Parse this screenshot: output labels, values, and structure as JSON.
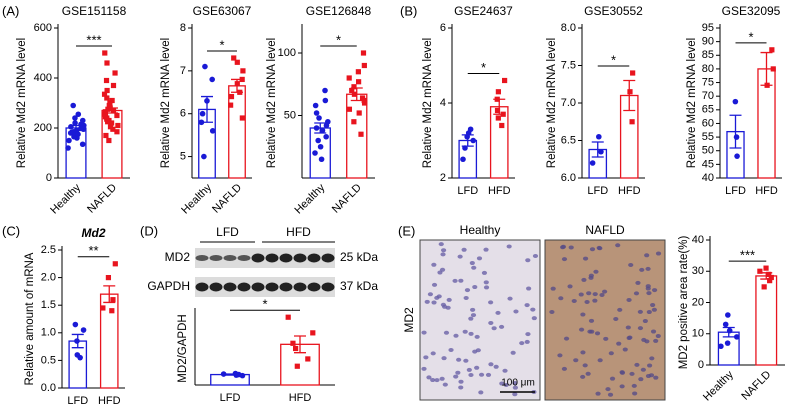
{
  "chart_data": [
    {
      "type": "bar",
      "panel": "(A)",
      "title": "GSE151158",
      "ylabel": "Relative Md2 mRNA level",
      "categories": [
        "Healthy",
        "NAFLD"
      ],
      "values": [
        200,
        270
      ],
      "errors": [
        10,
        10
      ],
      "points": [
        [
          120,
          135,
          150,
          160,
          165,
          170,
          175,
          180,
          185,
          190,
          195,
          200,
          205,
          210,
          215,
          220,
          230,
          240,
          255,
          290
        ],
        [
          150,
          170,
          185,
          195,
          205,
          210,
          220,
          225,
          230,
          235,
          240,
          245,
          250,
          255,
          260,
          265,
          270,
          275,
          280,
          290,
          300,
          310,
          320,
          335,
          350,
          370,
          390,
          420,
          460,
          500
        ]
      ],
      "colors": [
        "#1a1ad6",
        "#e8141e"
      ],
      "markers": [
        "circle",
        "square"
      ],
      "ylim": [
        0,
        600
      ],
      "yticks": [
        0,
        200,
        400,
        600
      ],
      "significance": "***"
    },
    {
      "type": "bar",
      "title": "GSE63067",
      "ylabel": "Relative Md2 mRNA level",
      "categories": [
        "Healthy",
        "NAFLD"
      ],
      "values": [
        6.1,
        6.65
      ],
      "errors": [
        0.3,
        0.15
      ],
      "points": [
        [
          5.0,
          5.6,
          5.8,
          6.0,
          6.3,
          6.8,
          7.1
        ],
        [
          5.9,
          6.2,
          6.4,
          6.5,
          6.7,
          6.8,
          7.0,
          7.2,
          7.3
        ]
      ],
      "colors": [
        "#1a1ad6",
        "#e8141e"
      ],
      "markers": [
        "circle",
        "square"
      ],
      "ylim": [
        4.5,
        8
      ],
      "yticks": [
        5,
        6,
        7,
        8
      ],
      "significance": "*"
    },
    {
      "type": "bar",
      "title": "GSE126848",
      "ylabel": "Relative Md2 mRNA level",
      "categories": [
        "Healthy",
        "NAFLD"
      ],
      "values": [
        40,
        67
      ],
      "errors": [
        4,
        5
      ],
      "points": [
        [
          15,
          20,
          25,
          30,
          33,
          38,
          40,
          42,
          45,
          48,
          52,
          58,
          62,
          70
        ],
        [
          35,
          45,
          52,
          55,
          60,
          62,
          64,
          67,
          70,
          73,
          77,
          80,
          85,
          90,
          100
        ]
      ],
      "colors": [
        "#1a1ad6",
        "#e8141e"
      ],
      "markers": [
        "circle",
        "square"
      ],
      "ylim": [
        0,
        120
      ],
      "yticks": [
        50,
        100
      ],
      "significance": "*"
    },
    {
      "type": "bar",
      "panel": "(B)",
      "title": "GSE24637",
      "ylabel": "Relative Md2 mRNA level",
      "categories": [
        "LFD",
        "HFD"
      ],
      "values": [
        3.0,
        3.9
      ],
      "errors": [
        0.15,
        0.2
      ],
      "points": [
        [
          2.5,
          2.8,
          3.0,
          3.1,
          3.2,
          3.3
        ],
        [
          3.4,
          3.6,
          3.7,
          3.8,
          4.1,
          4.3,
          4.6
        ]
      ],
      "colors": [
        "#1a1ad6",
        "#e8141e"
      ],
      "markers": [
        "circle",
        "square"
      ],
      "ylim": [
        2,
        6
      ],
      "yticks": [
        2,
        4,
        6
      ],
      "significance": "*"
    },
    {
      "type": "bar",
      "title": "GSE30552",
      "ylabel": "Relative Md2 mRNA level",
      "categories": [
        "LFD",
        "HFD"
      ],
      "values": [
        6.38,
        7.1
      ],
      "errors": [
        0.1,
        0.2
      ],
      "points": [
        [
          6.2,
          6.35,
          6.55
        ],
        [
          6.75,
          7.15,
          7.4
        ]
      ],
      "colors": [
        "#1a1ad6",
        "#e8141e"
      ],
      "markers": [
        "circle",
        "square"
      ],
      "ylim": [
        6,
        8
      ],
      "yticks": [
        {
          "value": 6,
          "label": "6.0"
        },
        6.5,
        {
          "value": 7,
          "label": "7.0"
        },
        7.5,
        {
          "value": 8,
          "label": "8.0"
        }
      ],
      "significance": "*"
    },
    {
      "type": "bar",
      "title": "GSE32095",
      "ylabel": "Relative Md2 mRNA level",
      "categories": [
        "LFD",
        "HFD"
      ],
      "values": [
        57,
        80
      ],
      "errors": [
        6,
        6
      ],
      "points": [
        [
          48,
          55,
          68
        ],
        [
          74,
          80,
          87
        ]
      ],
      "colors": [
        "#1a1ad6",
        "#e8141e"
      ],
      "markers": [
        "circle",
        "square"
      ],
      "ylim": [
        40,
        95
      ],
      "yticks": [
        40,
        45,
        50,
        55,
        60,
        65,
        70,
        75,
        80,
        85,
        90,
        95
      ],
      "significance": "*"
    },
    {
      "type": "bar",
      "panel": "(C)",
      "title": "Md2",
      "ylabel": "Relative amount of mRNA",
      "categories": [
        "LFD",
        "HFD"
      ],
      "values": [
        0.85,
        1.7
      ],
      "errors": [
        0.12,
        0.15
      ],
      "points": [
        [
          0.55,
          0.6,
          0.85,
          1.05,
          1.15
        ],
        [
          1.4,
          1.45,
          1.6,
          2.0,
          2.25
        ]
      ],
      "colors": [
        "#1a1ad6",
        "#e8141e"
      ],
      "markers": [
        "circle",
        "square"
      ],
      "ylim": [
        0,
        2.5
      ],
      "yticks": [
        {
          "value": 0,
          "label": "0.0"
        },
        0.5,
        {
          "value": 1,
          "label": "1.0"
        },
        1.5,
        {
          "value": 2,
          "label": "2.0"
        },
        2.5
      ],
      "significance": "**"
    },
    {
      "type": "bar",
      "panel": "(D)",
      "ylabel": "MD2/GAPDH",
      "categories": [
        "LFD",
        "HFD"
      ],
      "values": [
        1.0,
        3.9
      ],
      "errors": [
        0.05,
        0.8
      ],
      "points": [
        [
          0.9,
          0.95,
          1.0,
          1.05,
          1.1
        ],
        [
          1.8,
          2.5,
          3.5,
          4.0,
          5.0,
          6.5
        ]
      ],
      "colors": [
        "#1a1ad6",
        "#e8141e"
      ],
      "markers": [
        "circle",
        "square"
      ],
      "ylim": [
        0,
        7
      ],
      "significance": "*",
      "blot": {
        "groups": [
          "LFD",
          "HFD"
        ],
        "rows": [
          "MD2",
          "GAPDH"
        ],
        "sizes": [
          "25 kDa",
          "37 kDa"
        ]
      }
    },
    {
      "type": "bar",
      "panel": "(E)",
      "ylabel": "MD2 positive area rate(%)",
      "categories": [
        "Healthy",
        "NAFLD"
      ],
      "values": [
        10.5,
        28.5
      ],
      "errors": [
        1.5,
        1
      ],
      "points": [
        [
          6,
          7,
          9,
          11,
          13,
          16
        ],
        [
          25,
          27,
          28,
          29,
          30,
          31
        ]
      ],
      "colors": [
        "#1a1ad6",
        "#e8141e"
      ],
      "markers": [
        "circle",
        "square"
      ],
      "ylim": [
        0,
        40
      ],
      "yticks": [
        0,
        10,
        20,
        30,
        40
      ],
      "significance": "***",
      "images": {
        "titles": [
          "Healthy",
          "NAFLD"
        ],
        "stain": "MD2",
        "scale": "100 μm"
      }
    }
  ]
}
